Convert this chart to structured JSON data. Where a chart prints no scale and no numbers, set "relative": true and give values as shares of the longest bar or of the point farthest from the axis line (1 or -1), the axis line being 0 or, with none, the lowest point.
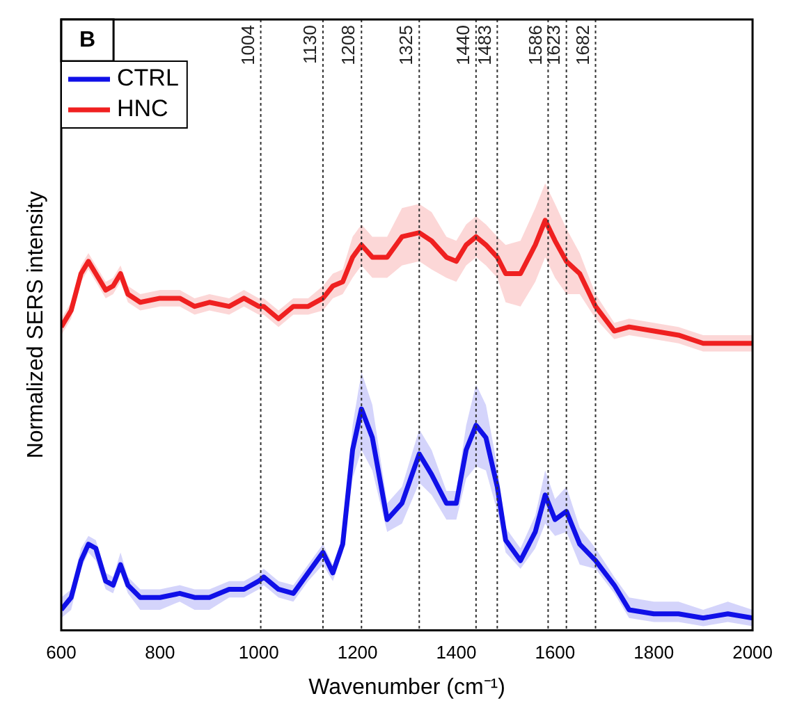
{
  "chart_data": {
    "type": "line",
    "relative": true,
    "xlabel": "Wavenumber (cm⁻¹)",
    "ylabel": "Normalized SERS intensity",
    "annotations": [
      "B"
    ],
    "x": [
      600,
      620,
      640,
      655,
      670,
      690,
      705,
      720,
      735,
      760,
      800,
      840,
      870,
      900,
      940,
      970,
      1000,
      1010,
      1040,
      1070,
      1100,
      1130,
      1150,
      1170,
      1190,
      1208,
      1230,
      1260,
      1290,
      1325,
      1350,
      1380,
      1400,
      1420,
      1440,
      1460,
      1483,
      1500,
      1530,
      1560,
      1580,
      1600,
      1623,
      1650,
      1682,
      1720,
      1750,
      1800,
      1850,
      1900,
      1950,
      2000
    ],
    "xlim": [
      600,
      2000
    ],
    "xticks": [
      600,
      800,
      1000,
      1200,
      1400,
      1600,
      1800,
      2000
    ],
    "grid": false,
    "legend": "top left",
    "marker": "none",
    "line_style": "solid",
    "series": [
      {
        "name": "CTRL",
        "color": "#1010e8",
        "values": [
          0.05,
          0.08,
          0.17,
          0.21,
          0.2,
          0.12,
          0.11,
          0.16,
          0.11,
          0.08,
          0.08,
          0.09,
          0.08,
          0.08,
          0.1,
          0.1,
          0.12,
          0.13,
          0.1,
          0.09,
          0.14,
          0.19,
          0.14,
          0.21,
          0.44,
          0.54,
          0.47,
          0.27,
          0.31,
          0.43,
          0.38,
          0.31,
          0.31,
          0.44,
          0.5,
          0.47,
          0.35,
          0.22,
          0.17,
          0.24,
          0.33,
          0.27,
          0.29,
          0.21,
          0.17,
          0.11,
          0.05,
          0.04,
          0.04,
          0.03,
          0.04,
          0.03
        ],
        "upper": [
          0.08,
          0.1,
          0.2,
          0.23,
          0.22,
          0.14,
          0.13,
          0.19,
          0.13,
          0.1,
          0.1,
          0.11,
          0.1,
          0.1,
          0.12,
          0.12,
          0.14,
          0.15,
          0.12,
          0.11,
          0.16,
          0.21,
          0.16,
          0.23,
          0.5,
          0.63,
          0.55,
          0.31,
          0.35,
          0.49,
          0.44,
          0.34,
          0.34,
          0.5,
          0.6,
          0.55,
          0.4,
          0.25,
          0.2,
          0.28,
          0.39,
          0.32,
          0.35,
          0.25,
          0.2,
          0.13,
          0.08,
          0.07,
          0.07,
          0.05,
          0.07,
          0.05
        ],
        "lower": [
          0.03,
          0.05,
          0.15,
          0.19,
          0.17,
          0.1,
          0.09,
          0.14,
          0.09,
          0.05,
          0.05,
          0.07,
          0.05,
          0.05,
          0.08,
          0.08,
          0.1,
          0.11,
          0.08,
          0.07,
          0.12,
          0.16,
          0.12,
          0.19,
          0.37,
          0.44,
          0.39,
          0.24,
          0.26,
          0.36,
          0.33,
          0.27,
          0.27,
          0.37,
          0.4,
          0.39,
          0.29,
          0.19,
          0.15,
          0.2,
          0.26,
          0.23,
          0.24,
          0.16,
          0.15,
          0.09,
          0.03,
          0.02,
          0.02,
          0.01,
          0.02,
          0.01
        ]
      },
      {
        "name": "HNC",
        "color": "#f02020",
        "values": [
          0.74,
          0.78,
          0.87,
          0.9,
          0.87,
          0.83,
          0.84,
          0.87,
          0.82,
          0.8,
          0.81,
          0.81,
          0.79,
          0.8,
          0.79,
          0.81,
          0.79,
          0.79,
          0.76,
          0.79,
          0.79,
          0.81,
          0.84,
          0.85,
          0.91,
          0.94,
          0.91,
          0.91,
          0.96,
          0.97,
          0.95,
          0.91,
          0.9,
          0.94,
          0.96,
          0.94,
          0.91,
          0.87,
          0.87,
          0.94,
          1.0,
          0.95,
          0.9,
          0.87,
          0.79,
          0.73,
          0.74,
          0.73,
          0.72,
          0.7,
          0.7,
          0.7
        ],
        "upper": [
          0.76,
          0.8,
          0.89,
          0.92,
          0.89,
          0.85,
          0.86,
          0.89,
          0.84,
          0.82,
          0.83,
          0.83,
          0.81,
          0.82,
          0.81,
          0.83,
          0.81,
          0.81,
          0.78,
          0.81,
          0.81,
          0.84,
          0.87,
          0.88,
          0.96,
          0.99,
          0.96,
          0.96,
          1.03,
          1.04,
          1.02,
          0.96,
          0.95,
          0.99,
          1.01,
          0.99,
          0.96,
          0.94,
          0.95,
          1.03,
          1.09,
          1.04,
          0.98,
          0.92,
          0.82,
          0.75,
          0.76,
          0.75,
          0.74,
          0.72,
          0.72,
          0.72
        ],
        "lower": [
          0.72,
          0.76,
          0.85,
          0.88,
          0.85,
          0.81,
          0.82,
          0.85,
          0.8,
          0.78,
          0.79,
          0.79,
          0.77,
          0.78,
          0.77,
          0.79,
          0.77,
          0.77,
          0.74,
          0.77,
          0.77,
          0.78,
          0.81,
          0.82,
          0.86,
          0.89,
          0.86,
          0.86,
          0.89,
          0.9,
          0.88,
          0.86,
          0.85,
          0.89,
          0.91,
          0.89,
          0.86,
          0.8,
          0.79,
          0.85,
          0.91,
          0.86,
          0.82,
          0.82,
          0.76,
          0.71,
          0.72,
          0.71,
          0.7,
          0.68,
          0.68,
          0.68
        ]
      }
    ],
    "ref_lines": [
      {
        "axis": "x",
        "value": 1004,
        "label": "1004",
        "line_style": "dotted"
      },
      {
        "axis": "x",
        "value": 1130,
        "label": "1130",
        "line_style": "dotted"
      },
      {
        "axis": "x",
        "value": 1208,
        "label": "1208",
        "line_style": "dotted"
      },
      {
        "axis": "x",
        "value": 1325,
        "label": "1325",
        "line_style": "dotted"
      },
      {
        "axis": "x",
        "value": 1440,
        "label": "1440",
        "line_style": "dotted"
      },
      {
        "axis": "x",
        "value": 1483,
        "label": "1483",
        "line_style": "dotted"
      },
      {
        "axis": "x",
        "value": 1586,
        "label": "1586",
        "line_style": "dotted"
      },
      {
        "axis": "x",
        "value": 1623,
        "label": "1623",
        "line_style": "dotted"
      },
      {
        "axis": "x",
        "value": 1682,
        "label": "1682",
        "line_style": "dotted"
      }
    ]
  }
}
